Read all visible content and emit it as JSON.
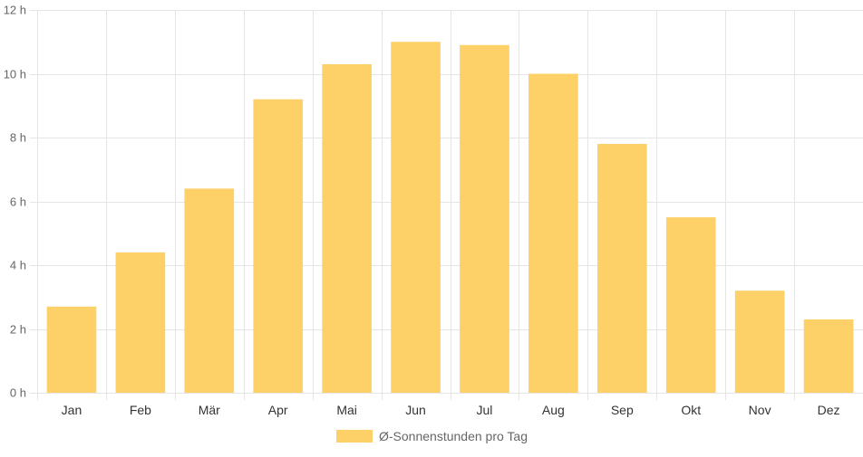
{
  "chart_data": {
    "type": "bar",
    "categories": [
      "Jan",
      "Feb",
      "Mär",
      "Apr",
      "Mai",
      "Jun",
      "Jul",
      "Aug",
      "Sep",
      "Okt",
      "Nov",
      "Dez"
    ],
    "series": [
      {
        "name": "Ø-Sonnenstunden pro Tag",
        "values": [
          2.7,
          4.4,
          6.4,
          9.2,
          10.3,
          11.0,
          10.9,
          10.0,
          7.8,
          5.5,
          3.2,
          2.3
        ]
      }
    ],
    "ylim": [
      0,
      12
    ],
    "yticks": [
      0,
      2,
      4,
      6,
      8,
      10,
      12
    ],
    "ytick_suffix": " h",
    "ytick_labels": [
      "0 h",
      "2 h",
      "4 h",
      "6 h",
      "8 h",
      "10 h",
      "12 h"
    ],
    "grid": true,
    "legend_position": "bottom",
    "bar_color": "#fdd068"
  }
}
